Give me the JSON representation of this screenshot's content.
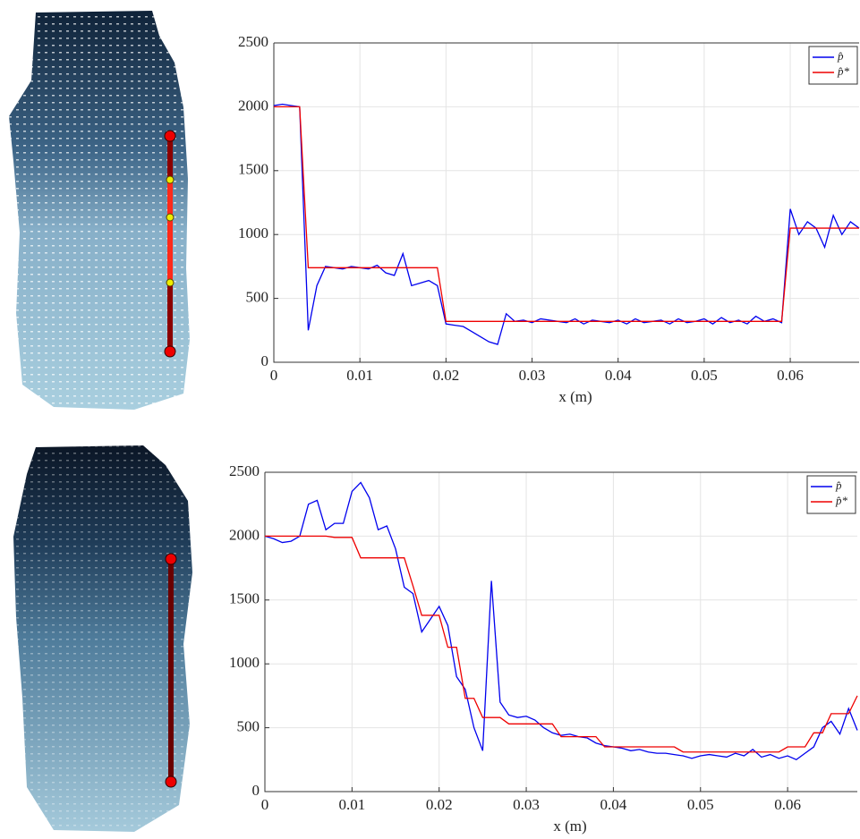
{
  "chart_data": [
    {
      "type": "line",
      "x_label": "x (m)",
      "xlim": [
        0,
        0.068
      ],
      "xticks": [
        0,
        0.01,
        0.02,
        0.03,
        0.04,
        0.05,
        0.06
      ],
      "ylim": [
        0,
        2500
      ],
      "yticks": [
        0,
        500,
        1000,
        1500,
        2000,
        2500
      ],
      "grid": true,
      "legend": "upper right",
      "x": [
        0,
        0.001,
        0.002,
        0.003,
        0.004,
        0.005,
        0.006,
        0.007,
        0.008,
        0.009,
        0.01,
        0.011,
        0.012,
        0.013,
        0.014,
        0.015,
        0.016,
        0.017,
        0.018,
        0.019,
        0.02,
        0.021,
        0.022,
        0.023,
        0.024,
        0.025,
        0.026,
        0.027,
        0.028,
        0.029,
        0.03,
        0.031,
        0.032,
        0.033,
        0.034,
        0.035,
        0.036,
        0.037,
        0.038,
        0.039,
        0.04,
        0.041,
        0.042,
        0.043,
        0.044,
        0.045,
        0.046,
        0.047,
        0.048,
        0.049,
        0.05,
        0.051,
        0.052,
        0.053,
        0.054,
        0.055,
        0.056,
        0.057,
        0.058,
        0.059,
        0.06,
        0.061,
        0.062,
        0.063,
        0.064,
        0.065,
        0.066,
        0.067,
        0.068
      ],
      "series": [
        {
          "name": "p̂",
          "color": "#0000ee",
          "values": [
            2010,
            2020,
            2010,
            2000,
            250,
            600,
            750,
            740,
            730,
            750,
            740,
            730,
            760,
            700,
            680,
            850,
            600,
            620,
            640,
            600,
            300,
            290,
            280,
            240,
            200,
            160,
            140,
            380,
            320,
            330,
            310,
            340,
            330,
            320,
            310,
            340,
            300,
            330,
            320,
            310,
            330,
            300,
            340,
            310,
            320,
            330,
            300,
            340,
            310,
            320,
            340,
            300,
            350,
            310,
            330,
            300,
            360,
            320,
            340,
            310,
            1200,
            1000,
            1100,
            1050,
            900,
            1150,
            1000,
            1100,
            1050
          ]
        },
        {
          "name": "p̂*",
          "color": "#ee0000",
          "values": [
            2000,
            2000,
            2000,
            2000,
            740,
            740,
            740,
            740,
            740,
            740,
            740,
            740,
            740,
            740,
            740,
            740,
            740,
            740,
            740,
            740,
            320,
            320,
            320,
            320,
            320,
            320,
            320,
            320,
            320,
            320,
            320,
            320,
            320,
            320,
            320,
            320,
            320,
            320,
            320,
            320,
            320,
            320,
            320,
            320,
            320,
            320,
            320,
            320,
            320,
            320,
            320,
            320,
            320,
            320,
            320,
            320,
            320,
            320,
            320,
            320,
            1050,
            1050,
            1050,
            1050,
            1050,
            1050,
            1050,
            1050,
            1050
          ]
        }
      ]
    },
    {
      "type": "line",
      "x_label": "x (m)",
      "xlim": [
        0,
        0.068
      ],
      "xticks": [
        0,
        0.01,
        0.02,
        0.03,
        0.04,
        0.05,
        0.06
      ],
      "ylim": [
        0,
        2500
      ],
      "yticks": [
        0,
        500,
        1000,
        1500,
        2000,
        2500
      ],
      "grid": true,
      "legend": "upper right",
      "x": [
        0,
        0.001,
        0.002,
        0.003,
        0.004,
        0.005,
        0.006,
        0.007,
        0.008,
        0.009,
        0.01,
        0.011,
        0.012,
        0.013,
        0.014,
        0.015,
        0.016,
        0.017,
        0.018,
        0.019,
        0.02,
        0.021,
        0.022,
        0.023,
        0.024,
        0.025,
        0.026,
        0.027,
        0.028,
        0.029,
        0.03,
        0.031,
        0.032,
        0.033,
        0.034,
        0.035,
        0.036,
        0.037,
        0.038,
        0.039,
        0.04,
        0.041,
        0.042,
        0.043,
        0.044,
        0.045,
        0.046,
        0.047,
        0.048,
        0.049,
        0.05,
        0.051,
        0.052,
        0.053,
        0.054,
        0.055,
        0.056,
        0.057,
        0.058,
        0.059,
        0.06,
        0.061,
        0.062,
        0.063,
        0.064,
        0.065,
        0.066,
        0.067,
        0.068
      ],
      "series": [
        {
          "name": "p̂",
          "color": "#0000ee",
          "values": [
            2000,
            1980,
            1950,
            1960,
            2000,
            2250,
            2280,
            2050,
            2100,
            2100,
            2350,
            2420,
            2300,
            2050,
            2080,
            1900,
            1600,
            1550,
            1250,
            1350,
            1450,
            1300,
            900,
            800,
            500,
            320,
            1650,
            700,
            600,
            580,
            590,
            560,
            500,
            460,
            440,
            450,
            430,
            420,
            380,
            360,
            350,
            340,
            320,
            330,
            310,
            300,
            300,
            290,
            280,
            260,
            280,
            290,
            280,
            270,
            300,
            280,
            330,
            270,
            290,
            260,
            280,
            250,
            300,
            350,
            500,
            550,
            450,
            650,
            480
          ]
        },
        {
          "name": "p̂*",
          "color": "#ee0000",
          "values": [
            2000,
            2000,
            2000,
            2000,
            2000,
            2000,
            2000,
            2000,
            1990,
            1990,
            1990,
            1830,
            1830,
            1830,
            1830,
            1830,
            1830,
            1610,
            1380,
            1380,
            1380,
            1130,
            1130,
            730,
            730,
            580,
            580,
            580,
            530,
            530,
            530,
            530,
            530,
            530,
            430,
            430,
            430,
            430,
            430,
            350,
            350,
            350,
            350,
            350,
            350,
            350,
            350,
            350,
            310,
            310,
            310,
            310,
            310,
            310,
            310,
            310,
            310,
            310,
            310,
            310,
            350,
            350,
            350,
            460,
            460,
            610,
            610,
            610,
            750
          ]
        }
      ]
    }
  ]
}
